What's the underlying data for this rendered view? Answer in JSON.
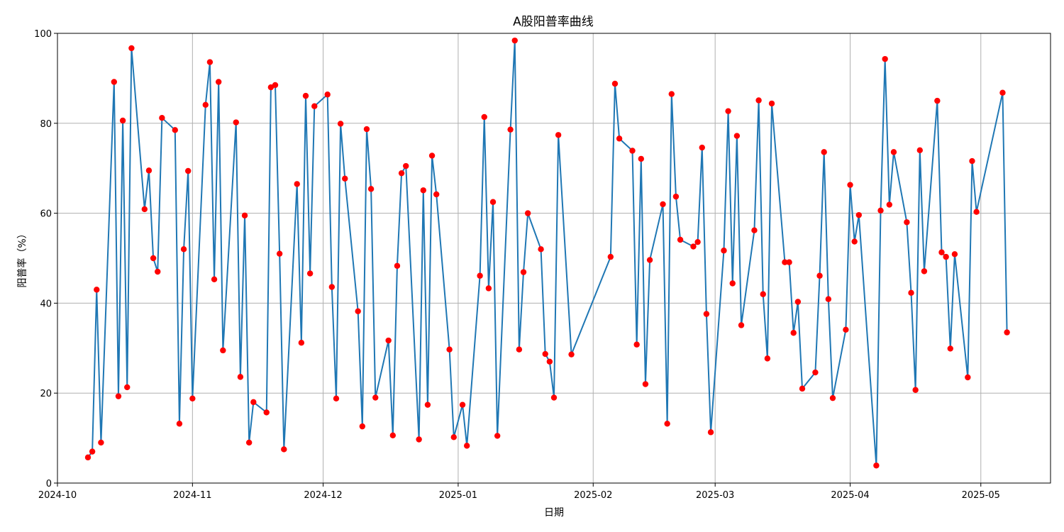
{
  "chart_data": {
    "type": "line",
    "title": "A股阳普率曲线",
    "xlabel": "日期",
    "ylabel": "阳普率（%）",
    "xlim": [
      "2024-10-01",
      "2025-05-17"
    ],
    "ylim": [
      0,
      100
    ],
    "x_ticks": [
      "2024-10-01",
      "2024-11-01",
      "2024-12-01",
      "2025-01-01",
      "2025-02-01",
      "2025-03-01",
      "2025-04-01",
      "2025-05-01"
    ],
    "x_tick_labels": [
      "2024-10",
      "2024-11",
      "2024-12",
      "2025-01",
      "2025-02",
      "2025-03",
      "2025-04",
      "2025-05"
    ],
    "y_ticks": [
      0,
      20,
      40,
      60,
      80,
      100
    ],
    "y_tick_labels": [
      "0",
      "20",
      "40",
      "60",
      "80",
      "100"
    ],
    "grid": true,
    "line_color": "#1f77b4",
    "marker_color": "#ff0000",
    "series": [
      {
        "x": [
          "2024-10-08",
          "2024-10-09",
          "2024-10-10",
          "2024-10-11",
          "2024-10-14",
          "2024-10-15",
          "2024-10-16",
          "2024-10-17",
          "2024-10-18",
          "2024-10-21",
          "2024-10-22",
          "2024-10-23",
          "2024-10-24",
          "2024-10-25",
          "2024-10-28",
          "2024-10-29",
          "2024-10-30",
          "2024-10-31",
          "2024-11-01",
          "2024-11-04",
          "2024-11-05",
          "2024-11-06",
          "2024-11-07",
          "2024-11-08",
          "2024-11-11",
          "2024-11-12",
          "2024-11-13",
          "2024-11-14",
          "2024-11-15",
          "2024-11-18",
          "2024-11-19",
          "2024-11-20",
          "2024-11-21",
          "2024-11-22",
          "2024-11-25",
          "2024-11-26",
          "2024-11-27",
          "2024-11-28",
          "2024-11-29",
          "2024-12-02",
          "2024-12-03",
          "2024-12-04",
          "2024-12-05",
          "2024-12-06",
          "2024-12-09",
          "2024-12-10",
          "2024-12-11",
          "2024-12-12",
          "2024-12-13",
          "2024-12-16",
          "2024-12-17",
          "2024-12-18",
          "2024-12-19",
          "2024-12-20",
          "2024-12-23",
          "2024-12-24",
          "2024-12-25",
          "2024-12-26",
          "2024-12-27",
          "2024-12-30",
          "2024-12-31",
          "2025-01-02",
          "2025-01-03",
          "2025-01-06",
          "2025-01-07",
          "2025-01-08",
          "2025-01-09",
          "2025-01-10",
          "2025-01-13",
          "2025-01-14",
          "2025-01-15",
          "2025-01-16",
          "2025-01-17",
          "2025-01-20",
          "2025-01-21",
          "2025-01-22",
          "2025-01-23",
          "2025-01-24",
          "2025-01-27",
          "2025-02-05",
          "2025-02-06",
          "2025-02-07",
          "2025-02-10",
          "2025-02-11",
          "2025-02-12",
          "2025-02-13",
          "2025-02-14",
          "2025-02-17",
          "2025-02-18",
          "2025-02-19",
          "2025-02-20",
          "2025-02-21",
          "2025-02-24",
          "2025-02-25",
          "2025-02-26",
          "2025-02-27",
          "2025-02-28",
          "2025-03-03",
          "2025-03-04",
          "2025-03-05",
          "2025-03-06",
          "2025-03-07",
          "2025-03-10",
          "2025-03-11",
          "2025-03-12",
          "2025-03-13",
          "2025-03-14",
          "2025-03-17",
          "2025-03-18",
          "2025-03-19",
          "2025-03-20",
          "2025-03-21",
          "2025-03-24",
          "2025-03-25",
          "2025-03-26",
          "2025-03-27",
          "2025-03-28",
          "2025-03-31",
          "2025-04-01",
          "2025-04-02",
          "2025-04-03",
          "2025-04-07",
          "2025-04-08",
          "2025-04-09",
          "2025-04-10",
          "2025-04-11",
          "2025-04-14",
          "2025-04-15",
          "2025-04-16",
          "2025-04-17",
          "2025-04-18",
          "2025-04-21",
          "2025-04-22",
          "2025-04-23",
          "2025-04-24",
          "2025-04-25",
          "2025-04-28",
          "2025-04-29",
          "2025-04-30",
          "2025-05-06",
          "2025-05-07"
        ],
        "values": [
          5.7,
          7.0,
          43.0,
          9.0,
          89.2,
          19.3,
          80.6,
          21.3,
          96.7,
          60.9,
          69.5,
          50.0,
          47.0,
          81.2,
          78.5,
          13.2,
          52.0,
          69.4,
          18.8,
          84.1,
          93.6,
          45.3,
          89.2,
          29.5,
          80.2,
          23.6,
          59.5,
          9.0,
          18.0,
          15.7,
          88.0,
          88.5,
          51.0,
          7.5,
          66.5,
          31.2,
          86.1,
          46.6,
          83.8,
          86.4,
          43.6,
          18.8,
          79.9,
          67.7,
          38.2,
          12.6,
          78.7,
          65.4,
          19.0,
          31.7,
          10.6,
          48.3,
          68.9,
          70.5,
          9.7,
          65.1,
          17.4,
          72.8,
          64.2,
          29.7,
          10.2,
          17.4,
          8.3,
          46.1,
          81.4,
          43.3,
          62.5,
          10.5,
          78.6,
          98.4,
          29.7,
          46.9,
          60.0,
          52.0,
          28.7,
          27.0,
          19.0,
          77.4,
          28.6,
          50.3,
          88.8,
          76.6,
          73.9,
          30.8,
          72.1,
          22.0,
          49.6,
          62.0,
          13.2,
          86.5,
          63.7,
          54.1,
          52.6,
          53.6,
          74.6,
          37.6,
          11.3,
          51.7,
          82.7,
          44.4,
          77.2,
          35.1,
          56.2,
          85.1,
          42.0,
          27.7,
          84.4,
          49.1,
          49.1,
          33.4,
          40.3,
          21.0,
          24.6,
          46.1,
          73.6,
          40.9,
          18.9,
          34.1,
          66.3,
          53.7,
          59.6,
          3.9,
          60.6,
          94.3,
          61.9,
          73.6,
          58.0,
          42.3,
          20.7,
          74.0,
          47.1,
          85.0,
          51.3,
          50.3,
          29.9,
          50.9,
          23.5,
          71.6,
          60.3,
          86.8,
          33.5
        ]
      }
    ]
  }
}
